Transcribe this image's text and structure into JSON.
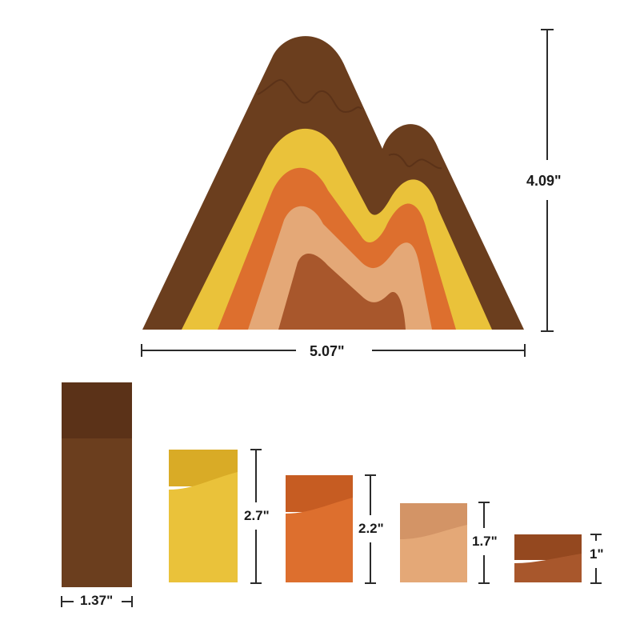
{
  "colors": {
    "dark_brown": "#6b3e1e",
    "dark_brown_shade": "#5b3218",
    "yellow": "#eac23a",
    "yellow_shade": "#d9ab26",
    "orange": "#dd6f2e",
    "orange_shade": "#c65c22",
    "tan": "#e4a877",
    "tan_shade": "#d39466",
    "brown_core": "#a8572c",
    "brown_core_shade": "#94481f",
    "dimension_line": "#2b2b2b"
  },
  "dimensions": {
    "set_height": "4.09\"",
    "set_width": "5.07\"",
    "piece_width": "1.37\"",
    "yellow_height": "2.7\"",
    "orange_height": "2.2\"",
    "tan_height": "1.7\"",
    "small_height": "1\""
  }
}
